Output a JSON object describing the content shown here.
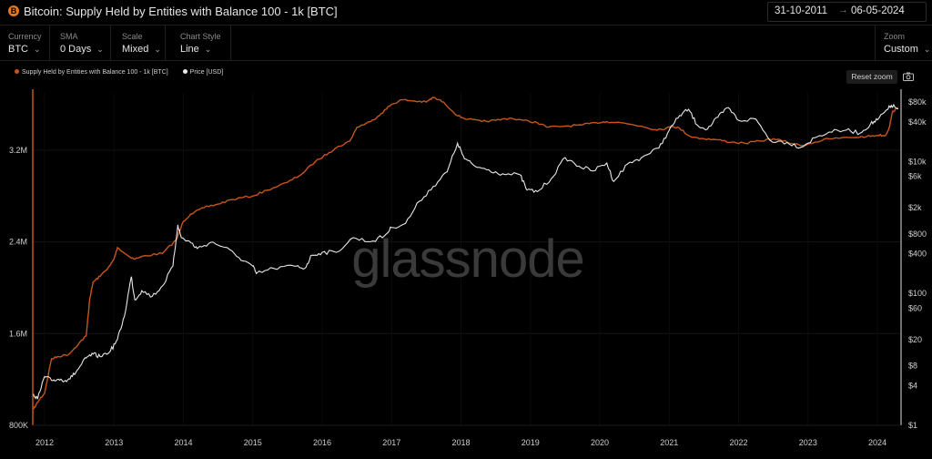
{
  "header": {
    "title": "Bitcoin: Supply Held by Entities with Balance 100 - 1k [BTC]",
    "logo_glyph": "B",
    "date_start": "31-10-2011",
    "date_arrow": "→",
    "date_end": "06-05-2024"
  },
  "controls": [
    {
      "label": "Currency",
      "value": "BTC"
    },
    {
      "label": "SMA",
      "value": "0 Days"
    },
    {
      "label": "Scale",
      "value": "Mixed"
    },
    {
      "label": "Chart Style",
      "value": "Line"
    }
  ],
  "zoom": {
    "label": "Zoom",
    "value": "Custom"
  },
  "reset_zoom_label": "Reset zoom",
  "watermark": "glassnode",
  "colors": {
    "supply": "#c9541b",
    "price": "#e8e8e8",
    "logo": "#e8751a"
  },
  "chart_data": {
    "type": "line",
    "title": "Bitcoin: Supply Held by Entities with Balance 100 - 1k [BTC]",
    "legend_position": "top-left",
    "grid": true,
    "x_range": [
      2011.83,
      2024.34
    ],
    "x_ticks": [
      "2012",
      "2013",
      "2014",
      "2015",
      "2016",
      "2017",
      "2018",
      "2019",
      "2020",
      "2021",
      "2022",
      "2023",
      "2024"
    ],
    "y_left": {
      "scale": "linear",
      "unit": "BTC",
      "range": [
        800000,
        3700000
      ],
      "ticks": [
        {
          "value": 800000,
          "label": "800K"
        },
        {
          "value": 1600000,
          "label": "1.6M"
        },
        {
          "value": 2400000,
          "label": "2.4M"
        },
        {
          "value": 3200000,
          "label": "3.2M"
        }
      ]
    },
    "y_right": {
      "scale": "log",
      "unit": "USD",
      "range": [
        1,
        110000
      ],
      "ticks": [
        {
          "value": 1,
          "label": "$1"
        },
        {
          "value": 4,
          "label": "$4"
        },
        {
          "value": 8,
          "label": "$8"
        },
        {
          "value": 20,
          "label": "$20"
        },
        {
          "value": 60,
          "label": "$60"
        },
        {
          "value": 100,
          "label": "$100"
        },
        {
          "value": 400,
          "label": "$400"
        },
        {
          "value": 800,
          "label": "$800"
        },
        {
          "value": 2000,
          "label": "$2k"
        },
        {
          "value": 6000,
          "label": "$6k"
        },
        {
          "value": 10000,
          "label": "$10k"
        },
        {
          "value": 40000,
          "label": "$40k"
        },
        {
          "value": 80000,
          "label": "$80k"
        }
      ]
    },
    "series": [
      {
        "name": "Supply Held by Entities with Balance 100 - 1k [BTC]",
        "axis": "left",
        "points": [
          [
            2011.84,
            940000
          ],
          [
            2011.92,
            1020000
          ],
          [
            2012.0,
            1080000
          ],
          [
            2012.1,
            1380000
          ],
          [
            2012.2,
            1400000
          ],
          [
            2012.35,
            1420000
          ],
          [
            2012.5,
            1520000
          ],
          [
            2012.6,
            1580000
          ],
          [
            2012.65,
            1900000
          ],
          [
            2012.7,
            2050000
          ],
          [
            2012.8,
            2100000
          ],
          [
            2012.95,
            2200000
          ],
          [
            2013.0,
            2250000
          ],
          [
            2013.05,
            2350000
          ],
          [
            2013.2,
            2280000
          ],
          [
            2013.3,
            2250000
          ],
          [
            2013.45,
            2280000
          ],
          [
            2013.7,
            2300000
          ],
          [
            2013.9,
            2420000
          ],
          [
            2014.0,
            2580000
          ],
          [
            2014.1,
            2640000
          ],
          [
            2014.3,
            2700000
          ],
          [
            2014.5,
            2730000
          ],
          [
            2014.7,
            2770000
          ],
          [
            2015.0,
            2800000
          ],
          [
            2015.2,
            2850000
          ],
          [
            2015.5,
            2920000
          ],
          [
            2015.7,
            2990000
          ],
          [
            2015.9,
            3100000
          ],
          [
            2016.1,
            3180000
          ],
          [
            2016.2,
            3220000
          ],
          [
            2016.4,
            3280000
          ],
          [
            2016.5,
            3400000
          ],
          [
            2016.7,
            3450000
          ],
          [
            2016.85,
            3520000
          ],
          [
            2017.0,
            3600000
          ],
          [
            2017.15,
            3640000
          ],
          [
            2017.3,
            3630000
          ],
          [
            2017.5,
            3620000
          ],
          [
            2017.6,
            3660000
          ],
          [
            2017.75,
            3620000
          ],
          [
            2017.95,
            3500000
          ],
          [
            2018.1,
            3470000
          ],
          [
            2018.3,
            3450000
          ],
          [
            2018.5,
            3460000
          ],
          [
            2018.7,
            3480000
          ],
          [
            2018.9,
            3460000
          ],
          [
            2019.1,
            3440000
          ],
          [
            2019.25,
            3400000
          ],
          [
            2019.5,
            3410000
          ],
          [
            2019.75,
            3420000
          ],
          [
            2019.95,
            3440000
          ],
          [
            2020.1,
            3450000
          ],
          [
            2020.3,
            3440000
          ],
          [
            2020.6,
            3410000
          ],
          [
            2020.8,
            3380000
          ],
          [
            2020.95,
            3390000
          ],
          [
            2021.05,
            3410000
          ],
          [
            2021.15,
            3390000
          ],
          [
            2021.3,
            3320000
          ],
          [
            2021.5,
            3300000
          ],
          [
            2021.7,
            3290000
          ],
          [
            2021.9,
            3270000
          ],
          [
            2022.1,
            3260000
          ],
          [
            2022.3,
            3280000
          ],
          [
            2022.5,
            3300000
          ],
          [
            2022.7,
            3270000
          ],
          [
            2022.9,
            3240000
          ],
          [
            2023.1,
            3270000
          ],
          [
            2023.3,
            3300000
          ],
          [
            2023.6,
            3310000
          ],
          [
            2023.85,
            3320000
          ],
          [
            2024.0,
            3330000
          ],
          [
            2024.12,
            3330000
          ],
          [
            2024.17,
            3400000
          ],
          [
            2024.22,
            3540000
          ],
          [
            2024.3,
            3570000
          ]
        ]
      },
      {
        "name": "Price [USD]",
        "axis": "right",
        "points": [
          [
            2011.84,
            3.0
          ],
          [
            2011.9,
            2.5
          ],
          [
            2012.0,
            5.5
          ],
          [
            2012.1,
            4.8
          ],
          [
            2012.2,
            5.0
          ],
          [
            2012.3,
            4.8
          ],
          [
            2012.4,
            5.5
          ],
          [
            2012.5,
            7.5
          ],
          [
            2012.6,
            10.5
          ],
          [
            2012.7,
            12.0
          ],
          [
            2012.8,
            11.0
          ],
          [
            2012.95,
            13.5
          ],
          [
            2013.05,
            20.0
          ],
          [
            2013.15,
            45.0
          ],
          [
            2013.25,
            180.0
          ],
          [
            2013.3,
            80.0
          ],
          [
            2013.4,
            110.0
          ],
          [
            2013.55,
            90.0
          ],
          [
            2013.7,
            130.0
          ],
          [
            2013.85,
            260.0
          ],
          [
            2013.92,
            1100.0
          ],
          [
            2013.97,
            700.0
          ],
          [
            2014.1,
            600.0
          ],
          [
            2014.2,
            480.0
          ],
          [
            2014.4,
            600.0
          ],
          [
            2014.6,
            500.0
          ],
          [
            2014.8,
            350.0
          ],
          [
            2015.0,
            260.0
          ],
          [
            2015.05,
            200.0
          ],
          [
            2015.3,
            240.0
          ],
          [
            2015.6,
            260.0
          ],
          [
            2015.75,
            240.0
          ],
          [
            2015.85,
            380.0
          ],
          [
            2016.0,
            420.0
          ],
          [
            2016.2,
            420.0
          ],
          [
            2016.45,
            700.0
          ],
          [
            2016.7,
            610.0
          ],
          [
            2016.9,
            750.0
          ],
          [
            2017.0,
            1000.0
          ],
          [
            2017.2,
            1150.0
          ],
          [
            2017.4,
            2500.0
          ],
          [
            2017.6,
            4200.0
          ],
          [
            2017.8,
            7000.0
          ],
          [
            2017.95,
            19000.0
          ],
          [
            2018.05,
            11000.0
          ],
          [
            2018.2,
            8500.0
          ],
          [
            2018.4,
            7500.0
          ],
          [
            2018.6,
            6500.0
          ],
          [
            2018.85,
            6300.0
          ],
          [
            2018.95,
            3700.0
          ],
          [
            2019.1,
            3500.0
          ],
          [
            2019.3,
            5500.0
          ],
          [
            2019.5,
            11500.0
          ],
          [
            2019.7,
            8500.0
          ],
          [
            2019.9,
            7200.0
          ],
          [
            2020.1,
            9500.0
          ],
          [
            2020.2,
            5000.0
          ],
          [
            2020.4,
            9200.0
          ],
          [
            2020.6,
            11500.0
          ],
          [
            2020.85,
            16000.0
          ],
          [
            2021.0,
            30000.0
          ],
          [
            2021.15,
            50000.0
          ],
          [
            2021.28,
            62000.0
          ],
          [
            2021.4,
            36000.0
          ],
          [
            2021.55,
            31000.0
          ],
          [
            2021.7,
            47000.0
          ],
          [
            2021.85,
            66000.0
          ],
          [
            2022.0,
            42000.0
          ],
          [
            2022.25,
            44000.0
          ],
          [
            2022.45,
            21000.0
          ],
          [
            2022.7,
            19500.0
          ],
          [
            2022.9,
            16500.0
          ],
          [
            2023.1,
            23000.0
          ],
          [
            2023.3,
            28000.0
          ],
          [
            2023.55,
            30000.0
          ],
          [
            2023.75,
            27000.0
          ],
          [
            2023.9,
            37000.0
          ],
          [
            2024.0,
            43000.0
          ],
          [
            2024.15,
            62000.0
          ],
          [
            2024.2,
            71000.0
          ],
          [
            2024.3,
            63000.0
          ]
        ]
      }
    ]
  },
  "legend": [
    {
      "label": "Supply Held by Entities with Balance 100 - 1k [BTC]",
      "color": "#c9541b"
    },
    {
      "label": "Price [USD]",
      "color": "#e8e8e8"
    }
  ]
}
